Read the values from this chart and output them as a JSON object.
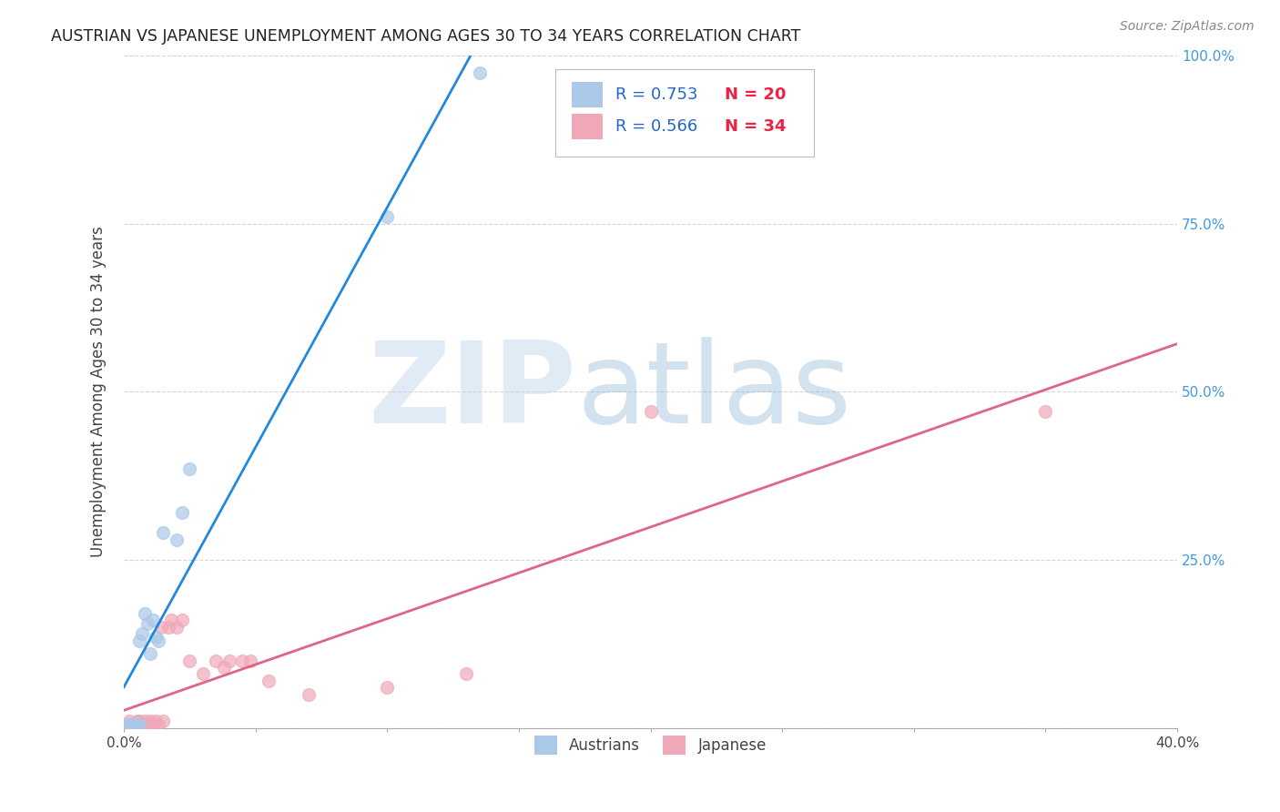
{
  "title": "AUSTRIAN VS JAPANESE UNEMPLOYMENT AMONG AGES 30 TO 34 YEARS CORRELATION CHART",
  "source": "Source: ZipAtlas.com",
  "ylabel": "Unemployment Among Ages 30 to 34 years",
  "xlim": [
    0.0,
    0.4
  ],
  "ylim": [
    0.0,
    1.0
  ],
  "xticks": [
    0.0,
    0.05,
    0.1,
    0.15,
    0.2,
    0.25,
    0.3,
    0.35,
    0.4
  ],
  "xticklabels": [
    "0.0%",
    "",
    "",
    "",
    "",
    "",
    "",
    "",
    "40.0%"
  ],
  "yticks": [
    0.0,
    0.25,
    0.5,
    0.75,
    1.0
  ],
  "right_yticklabels": [
    "",
    "25.0%",
    "50.0%",
    "75.0%",
    "100.0%"
  ],
  "background_color": "#ffffff",
  "grid_color": "#d5d5d5",
  "austrians_color": "#aac8e8",
  "japanese_color": "#f0a8b8",
  "line_austrians_color": "#2288dd",
  "line_japanese_color": "#dd6688",
  "R_austrians": 0.753,
  "N_austrians": 20,
  "R_japanese": 0.566,
  "N_japanese": 34,
  "austrians_x": [
    0.001,
    0.002,
    0.003,
    0.004,
    0.005,
    0.006,
    0.006,
    0.007,
    0.008,
    0.009,
    0.01,
    0.011,
    0.012,
    0.013,
    0.015,
    0.02,
    0.022,
    0.025,
    0.1,
    0.135
  ],
  "austrians_y": [
    0.005,
    0.005,
    0.005,
    0.005,
    0.005,
    0.005,
    0.13,
    0.14,
    0.17,
    0.155,
    0.11,
    0.16,
    0.135,
    0.13,
    0.29,
    0.28,
    0.32,
    0.385,
    0.76,
    0.975
  ],
  "japanese_x": [
    0.001,
    0.002,
    0.002,
    0.003,
    0.004,
    0.005,
    0.006,
    0.006,
    0.007,
    0.008,
    0.009,
    0.01,
    0.011,
    0.012,
    0.013,
    0.014,
    0.015,
    0.017,
    0.018,
    0.02,
    0.022,
    0.025,
    0.03,
    0.035,
    0.038,
    0.04,
    0.045,
    0.048,
    0.055,
    0.07,
    0.1,
    0.13,
    0.2,
    0.35
  ],
  "japanese_y": [
    0.005,
    0.005,
    0.01,
    0.005,
    0.005,
    0.01,
    0.005,
    0.01,
    0.005,
    0.01,
    0.005,
    0.01,
    0.005,
    0.01,
    0.005,
    0.15,
    0.01,
    0.15,
    0.16,
    0.15,
    0.16,
    0.1,
    0.08,
    0.1,
    0.09,
    0.1,
    0.1,
    0.1,
    0.07,
    0.05,
    0.06,
    0.08,
    0.47,
    0.47
  ],
  "watermark_zip": "ZIP",
  "watermark_atlas": "atlas",
  "marker_size": 100
}
